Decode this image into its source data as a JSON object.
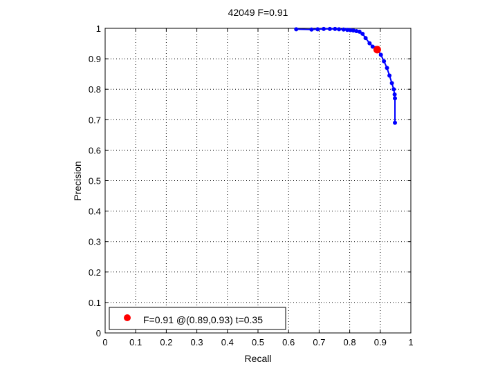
{
  "chart_data": {
    "type": "line",
    "title": "42049 F=0.91",
    "xlabel": "Recall",
    "ylabel": "Precision",
    "xlim": [
      0,
      1
    ],
    "ylim": [
      0,
      1
    ],
    "xticks": [
      "0",
      "0.1",
      "0.2",
      "0.3",
      "0.4",
      "0.5",
      "0.6",
      "0.7",
      "0.8",
      "0.9",
      "1"
    ],
    "yticks": [
      "0",
      "0.1",
      "0.2",
      "0.3",
      "0.4",
      "0.5",
      "0.6",
      "0.7",
      "0.8",
      "0.9",
      "1"
    ],
    "grid": true,
    "series": [
      {
        "color": "#0000ff",
        "points": [
          [
            0.625,
            0.997
          ],
          [
            0.675,
            0.996
          ],
          [
            0.695,
            0.997
          ],
          [
            0.715,
            0.998
          ],
          [
            0.735,
            0.998
          ],
          [
            0.752,
            0.998
          ],
          [
            0.765,
            0.997
          ],
          [
            0.78,
            0.996
          ],
          [
            0.792,
            0.995
          ],
          [
            0.802,
            0.994
          ],
          [
            0.812,
            0.993
          ],
          [
            0.822,
            0.991
          ],
          [
            0.832,
            0.989
          ],
          [
            0.842,
            0.982
          ],
          [
            0.852,
            0.968
          ],
          [
            0.865,
            0.951
          ],
          [
            0.875,
            0.94
          ],
          [
            0.885,
            0.935
          ],
          [
            0.893,
            0.927
          ],
          [
            0.902,
            0.913
          ],
          [
            0.912,
            0.892
          ],
          [
            0.922,
            0.87
          ],
          [
            0.93,
            0.845
          ],
          [
            0.938,
            0.82
          ],
          [
            0.944,
            0.8
          ],
          [
            0.947,
            0.783
          ],
          [
            0.948,
            0.77
          ],
          [
            0.948,
            0.69
          ]
        ]
      }
    ],
    "best_point": {
      "recall": 0.89,
      "precision": 0.93,
      "color": "#ff0000"
    },
    "legend": {
      "text": "F=0.91 @(0.89,0.93) t=0.35",
      "position": "lower-left"
    }
  }
}
